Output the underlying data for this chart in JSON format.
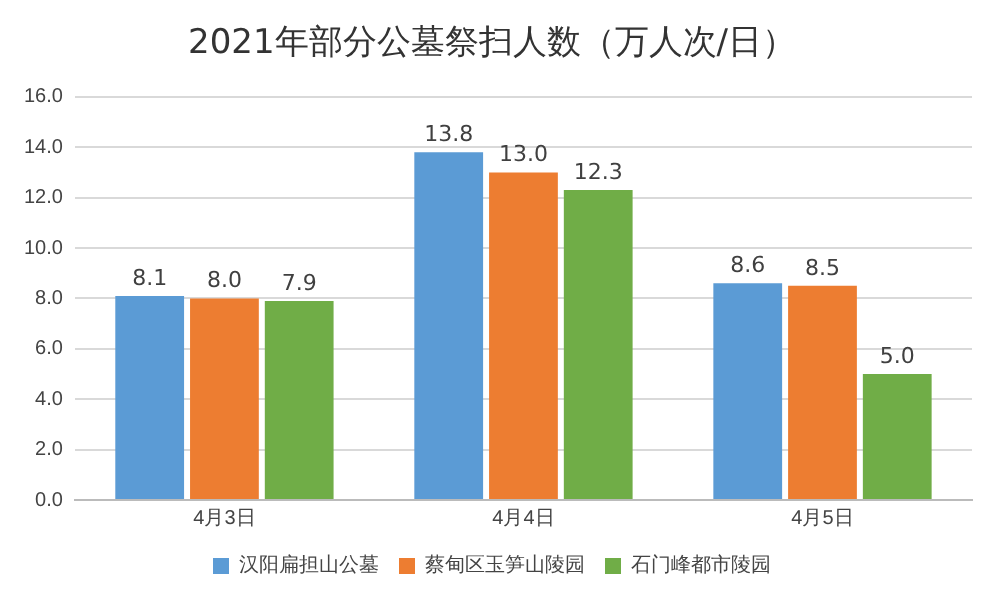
{
  "chart_data": {
    "type": "bar",
    "title": "2021年部分公墓祭扫人数（万人次/日）",
    "categories": [
      "4月3日",
      "4月4日",
      "4月5日"
    ],
    "series": [
      {
        "name": "汉阳扁担山公墓",
        "color": "#5b9bd5",
        "values": [
          8.1,
          13.8,
          8.6
        ],
        "value_labels": [
          "8.1",
          "13.8",
          "8.6"
        ]
      },
      {
        "name": "蔡甸区玉笋山陵园",
        "color": "#ed7d31",
        "values": [
          8.0,
          13.0,
          8.5
        ],
        "value_labels": [
          "8.0",
          "13.0",
          "8.5"
        ]
      },
      {
        "name": "石门峰都市陵园",
        "color": "#70ad47",
        "values": [
          7.9,
          12.3,
          5.0
        ],
        "value_labels": [
          "7.9",
          "12.3",
          "5.0"
        ]
      }
    ],
    "ylim": [
      0,
      16
    ],
    "yticks": [
      {
        "value": 0,
        "label": "0.0"
      },
      {
        "value": 2,
        "label": "2.0"
      },
      {
        "value": 4,
        "label": "4.0"
      },
      {
        "value": 6,
        "label": "6.0"
      },
      {
        "value": 8,
        "label": "8.0"
      },
      {
        "value": 10,
        "label": "10.0"
      },
      {
        "value": 12,
        "label": "12.0"
      },
      {
        "value": 14,
        "label": "14.0"
      },
      {
        "value": 16,
        "label": "16.0"
      }
    ],
    "grid": "y",
    "legend": "bottom"
  }
}
